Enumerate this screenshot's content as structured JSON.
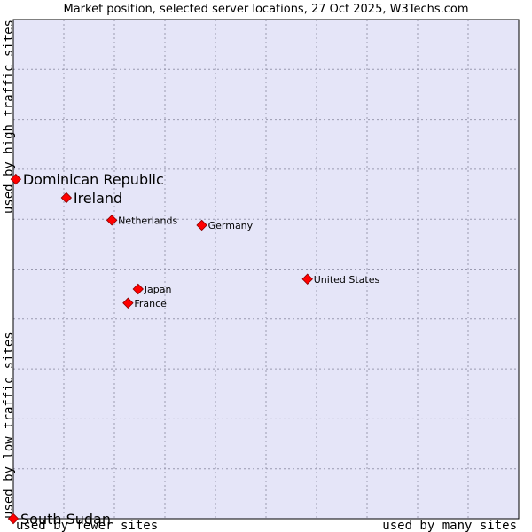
{
  "chart_data": {
    "type": "scatter",
    "title": "Market position, selected server locations, 27 Oct 2025, W3Techs.com",
    "xlabel_low": "used by fewer sites",
    "xlabel_high": "used by many sites",
    "ylabel_low": "used by low traffic sites",
    "ylabel_high": "used by high traffic sites",
    "xlim": [
      0,
      10
    ],
    "ylim": [
      0,
      10
    ],
    "grid": true,
    "colors": {
      "plot_bg": "#e5e5f8",
      "grid": "#9a9ab0",
      "frame": "#000000",
      "marker": "#ff0000",
      "marker_edge": "#880000"
    },
    "points": [
      {
        "label": "Dominican Republic",
        "x": 0.05,
        "y": 6.8,
        "size": "large"
      },
      {
        "label": "Ireland",
        "x": 1.05,
        "y": 6.43,
        "size": "large"
      },
      {
        "label": "Netherlands",
        "x": 1.95,
        "y": 5.98,
        "size": "small"
      },
      {
        "label": "Germany",
        "x": 3.73,
        "y": 5.88,
        "size": "small"
      },
      {
        "label": "United States",
        "x": 5.82,
        "y": 4.8,
        "size": "small"
      },
      {
        "label": "Japan",
        "x": 2.47,
        "y": 4.6,
        "size": "small"
      },
      {
        "label": "France",
        "x": 2.27,
        "y": 4.32,
        "size": "small"
      },
      {
        "label": "South Sudan",
        "x": 0.0,
        "y": 0.0,
        "size": "large"
      }
    ]
  }
}
